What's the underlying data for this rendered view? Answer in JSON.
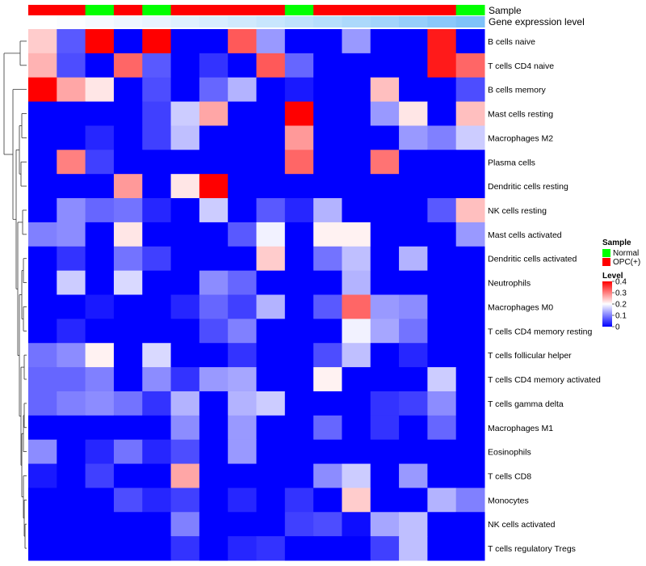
{
  "chart_data": {
    "type": "heatmap",
    "annotation_labels": {
      "sample": "Sample",
      "gene_expression": "Gene expression level"
    },
    "legend": {
      "sample_title": "Sample",
      "sample_entries": [
        {
          "label": "Normal",
          "color": "#00ff00"
        },
        {
          "label": "OPC(+)",
          "color": "#ff0000"
        }
      ],
      "level_title": "Level",
      "level_ticks": [
        "0.4",
        "0.3",
        "0.2",
        "0.1",
        "0"
      ],
      "level_range": [
        0,
        0.4
      ],
      "color_low": "#0000ff",
      "color_mid": "#ffffff",
      "color_high": "#ff0000"
    },
    "sample_groups": [
      "OPC(+)",
      "OPC(+)",
      "Normal",
      "OPC(+)",
      "Normal",
      "OPC(+)",
      "OPC(+)",
      "OPC(+)",
      "OPC(+)",
      "Normal",
      "OPC(+)",
      "OPC(+)",
      "OPC(+)",
      "OPC(+)",
      "OPC(+)",
      "Normal"
    ],
    "gene_expression_colors": [
      "#ffffff",
      "#fbfdff",
      "#f5faff",
      "#eef7ff",
      "#e8f4ff",
      "#e0f1fe",
      "#d8edfe",
      "#d0eafd",
      "#c8e6fd",
      "#bfe2fc",
      "#b6defc",
      "#acd9fb",
      "#a2d4fb",
      "#96cefa",
      "#8ac8fa",
      "#7ec2f9"
    ],
    "rows": [
      "B cells naive",
      "T cells CD4 naive",
      "B cells memory",
      "Mast cells resting",
      "Macrophages M2",
      "Plasma cells",
      "Dendritic cells resting",
      "NK cells resting",
      "Mast cells activated",
      "Dendritic cells activated",
      "Neutrophils",
      "Macrophages M0",
      "T cells CD4 memory resting",
      "T cells follicular helper",
      "T cells CD4 memory activated",
      "T cells gamma delta",
      "Macrophages M1",
      "Eosinophils",
      "T cells CD8",
      "Monocytes",
      "NK cells activated",
      "T cells regulatory  Tregs"
    ],
    "values": [
      [
        0.24,
        0.07,
        0.4,
        0.0,
        0.4,
        0.0,
        0.0,
        0.33,
        0.12,
        0.0,
        0.0,
        0.12,
        0.0,
        0.0,
        0.38,
        0.0
      ],
      [
        0.26,
        0.06,
        0.0,
        0.32,
        0.07,
        0.0,
        0.04,
        0.0,
        0.33,
        0.08,
        0.0,
        0.0,
        0.0,
        0.0,
        0.38,
        0.32
      ],
      [
        0.4,
        0.27,
        0.22,
        0.0,
        0.06,
        0.0,
        0.08,
        0.14,
        0.0,
        0.02,
        0.0,
        0.0,
        0.25,
        0.0,
        0.0,
        0.06
      ],
      [
        0.0,
        0.0,
        0.0,
        0.0,
        0.05,
        0.16,
        0.27,
        0.0,
        0.0,
        0.4,
        0.0,
        0.0,
        0.12,
        0.22,
        0.0,
        0.25
      ],
      [
        0.0,
        0.0,
        0.03,
        0.0,
        0.05,
        0.15,
        0.0,
        0.0,
        0.0,
        0.28,
        0.0,
        0.0,
        0.0,
        0.12,
        0.1,
        0.16
      ],
      [
        0.0,
        0.3,
        0.05,
        0.0,
        0.0,
        0.0,
        0.0,
        0.0,
        0.0,
        0.32,
        0.0,
        0.0,
        0.31,
        0.0,
        0.0,
        0.0
      ],
      [
        0.0,
        0.0,
        0.0,
        0.28,
        0.0,
        0.22,
        0.4,
        0.0,
        0.0,
        0.0,
        0.0,
        0.0,
        0.0,
        0.0,
        0.0,
        0.0
      ],
      [
        0.0,
        0.11,
        0.08,
        0.09,
        0.03,
        0.0,
        0.16,
        0.0,
        0.07,
        0.03,
        0.14,
        0.0,
        0.0,
        0.0,
        0.07,
        0.25
      ],
      [
        0.1,
        0.11,
        0.0,
        0.22,
        0.0,
        0.0,
        0.0,
        0.07,
        0.19,
        0.0,
        0.21,
        0.21,
        0.0,
        0.0,
        0.0,
        0.12
      ],
      [
        0.0,
        0.04,
        0.0,
        0.09,
        0.05,
        0.0,
        0.0,
        0.0,
        0.24,
        0.0,
        0.09,
        0.15,
        0.0,
        0.14,
        0.0,
        0.0
      ],
      [
        0.0,
        0.16,
        0.0,
        0.17,
        0.0,
        0.0,
        0.11,
        0.08,
        0.0,
        0.0,
        0.0,
        0.14,
        0.0,
        0.0,
        0.0,
        0.0
      ],
      [
        0.0,
        0.0,
        0.02,
        0.0,
        0.0,
        0.03,
        0.08,
        0.05,
        0.14,
        0.0,
        0.07,
        0.32,
        0.12,
        0.11,
        0.0,
        0.0
      ],
      [
        0.0,
        0.03,
        0.0,
        0.0,
        0.0,
        0.0,
        0.06,
        0.1,
        0.0,
        0.0,
        0.0,
        0.19,
        0.13,
        0.09,
        0.0,
        0.0
      ],
      [
        0.09,
        0.11,
        0.21,
        0.0,
        0.17,
        0.0,
        0.0,
        0.04,
        0.0,
        0.0,
        0.06,
        0.15,
        0.0,
        0.03,
        0.0,
        0.0
      ],
      [
        0.08,
        0.08,
        0.1,
        0.0,
        0.11,
        0.04,
        0.12,
        0.13,
        0.0,
        0.0,
        0.21,
        0.0,
        0.0,
        0.0,
        0.16,
        0.0
      ],
      [
        0.08,
        0.1,
        0.11,
        0.09,
        0.04,
        0.14,
        0.0,
        0.14,
        0.16,
        0.0,
        0.0,
        0.0,
        0.04,
        0.05,
        0.11,
        0.0
      ],
      [
        0.0,
        0.0,
        0.0,
        0.0,
        0.0,
        0.11,
        0.0,
        0.12,
        0.0,
        0.0,
        0.08,
        0.0,
        0.04,
        0.0,
        0.08,
        0.0
      ],
      [
        0.11,
        0.0,
        0.03,
        0.09,
        0.03,
        0.06,
        0.0,
        0.12,
        0.0,
        0.0,
        0.0,
        0.0,
        0.0,
        0.0,
        0.0,
        0.0
      ],
      [
        0.02,
        0.0,
        0.05,
        0.0,
        0.0,
        0.27,
        0.0,
        0.0,
        0.0,
        0.0,
        0.11,
        0.16,
        0.0,
        0.12,
        0.0,
        0.0
      ],
      [
        0.0,
        0.0,
        0.0,
        0.06,
        0.03,
        0.05,
        0.0,
        0.03,
        0.0,
        0.04,
        0.0,
        0.24,
        0.0,
        0.0,
        0.14,
        0.1
      ],
      [
        0.0,
        0.0,
        0.0,
        0.0,
        0.0,
        0.1,
        0.0,
        0.0,
        0.0,
        0.05,
        0.06,
        0.01,
        0.13,
        0.15,
        0.0,
        0.0
      ],
      [
        0.0,
        0.0,
        0.0,
        0.0,
        0.0,
        0.04,
        0.0,
        0.03,
        0.04,
        0.0,
        0.0,
        0.0,
        0.05,
        0.15,
        0.0,
        0.0
      ]
    ],
    "row_order_note": "",
    "dendrogram": "left"
  }
}
